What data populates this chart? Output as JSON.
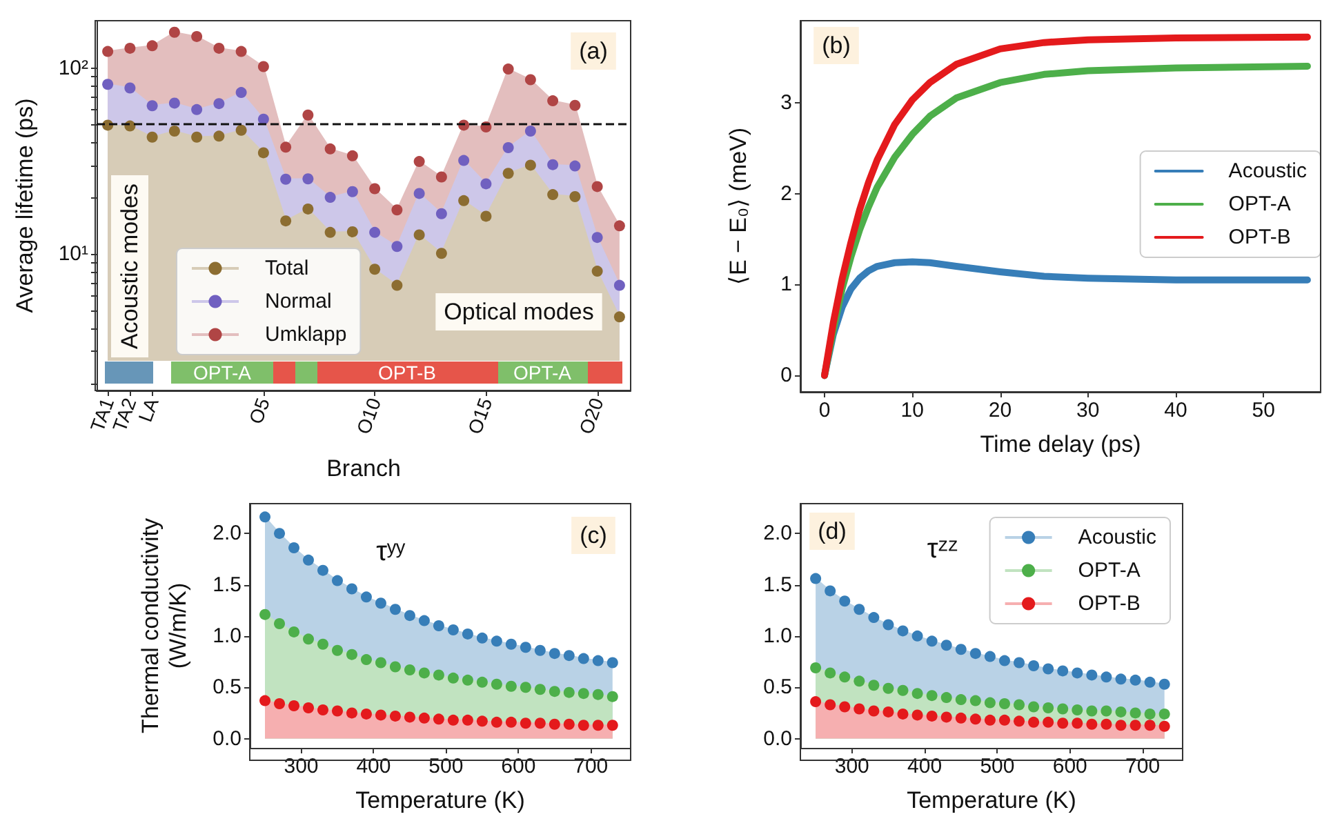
{
  "chart_data": [
    {
      "type": "area",
      "xlabel": "Branch",
      "ylabel": "Average lifetime (ps)",
      "log": "y",
      "marker": "circle",
      "grid": false,
      "legend": "bottom left",
      "categories": [
        "TA1",
        "TA2",
        "LA",
        null,
        null,
        null,
        null,
        "O5",
        null,
        null,
        null,
        null,
        "O10",
        null,
        null,
        null,
        null,
        "O15",
        null,
        null,
        null,
        null,
        "O20",
        null
      ],
      "ylim": [
        1.85,
        180
      ],
      "yticks": [
        {
          "value": 2,
          "label": null
        },
        {
          "value": 3,
          "label": null
        },
        {
          "value": 4,
          "label": null
        },
        {
          "value": 5,
          "label": null
        },
        {
          "value": 6,
          "label": null
        },
        {
          "value": 7,
          "label": null
        },
        {
          "value": 8,
          "label": null
        },
        {
          "value": 9,
          "label": null
        },
        {
          "value": 10,
          "label": "10¹"
        },
        {
          "value": 20,
          "label": null
        },
        {
          "value": 30,
          "label": null
        },
        {
          "value": 40,
          "label": null
        },
        {
          "value": 50,
          "label": null
        },
        {
          "value": 60,
          "label": null
        },
        {
          "value": 70,
          "label": null
        },
        {
          "value": 80,
          "label": null
        },
        {
          "value": 90,
          "label": null
        },
        {
          "value": 100,
          "label": "10²"
        }
      ],
      "series": [
        {
          "name": "Total",
          "color": "#8c6d31",
          "values": [
            49.4,
            48.9,
            42.6,
            45.9,
            42.6,
            43.1,
            46.4,
            35.1,
            15.1,
            17.5,
            13.1,
            13.2,
            8.3,
            6.8,
            12.7,
            10.1,
            19.4,
            16.0,
            27.2,
            30.1,
            20.9,
            20.4,
            8.1,
            4.6
          ]
        },
        {
          "name": "Normal",
          "color": "#7060c0",
          "values": [
            81.9,
            78.3,
            62.8,
            64.9,
            59.9,
            64.5,
            74.0,
            53.2,
            25.3,
            25.4,
            20.2,
            21.7,
            13.1,
            11.0,
            21.2,
            16.5,
            31.9,
            23.9,
            37.4,
            45.9,
            30.3,
            29.8,
            12.3,
            6.8
          ]
        },
        {
          "name": "Umklapp",
          "color": "#b04545",
          "values": [
            123,
            128,
            132,
            156,
            148,
            128,
            123,
            102,
            37.6,
            56.0,
            36.8,
            33.8,
            22.5,
            17.3,
            31.5,
            26.0,
            49.4,
            48.3,
            98.9,
            86.7,
            66.8,
            63.1,
            23.1,
            14.2
          ]
        }
      ],
      "ref_lines": [
        {
          "axis": "y",
          "value": 50,
          "label": null,
          "color": "#111111",
          "line_style": "dashed"
        }
      ],
      "annotations": [
        "(a)",
        "Acoustic modes",
        "Optical modes",
        "OPT-A",
        "OPT-B",
        "OPT-A"
      ]
    },
    {
      "type": "line",
      "xlabel": "Time delay (ps)",
      "ylabel": "⟨E − E₀⟩ (meV)",
      "marker": "none",
      "line_style": "solid",
      "grid": false,
      "legend": "center right",
      "x": [
        0,
        1,
        2,
        3,
        4,
        5,
        6,
        8,
        10,
        12,
        15,
        20,
        25,
        30,
        40,
        55
      ],
      "xlim": [
        -2.75,
        56.5
      ],
      "xticks": [
        0,
        10,
        20,
        30,
        40,
        50
      ],
      "ylim": [
        -0.18,
        3.9
      ],
      "yticks": [
        0,
        1,
        2,
        3
      ],
      "series": [
        {
          "name": "Acoustic",
          "color": "#377eb8",
          "values": [
            0,
            0.45,
            0.75,
            0.95,
            1.07,
            1.15,
            1.2,
            1.24,
            1.25,
            1.24,
            1.2,
            1.14,
            1.09,
            1.07,
            1.05,
            1.05
          ]
        },
        {
          "name": "OPT-A",
          "color": "#4daf4a",
          "values": [
            0,
            0.5,
            0.95,
            1.3,
            1.6,
            1.85,
            2.07,
            2.4,
            2.65,
            2.85,
            3.05,
            3.22,
            3.31,
            3.35,
            3.38,
            3.4
          ]
        },
        {
          "name": "OPT-B",
          "color": "#e41a1c",
          "values": [
            0,
            0.58,
            1.06,
            1.46,
            1.82,
            2.12,
            2.37,
            2.76,
            3.03,
            3.22,
            3.42,
            3.59,
            3.66,
            3.69,
            3.71,
            3.72
          ]
        }
      ],
      "annotations": [
        "(b)"
      ]
    },
    {
      "type": "area",
      "xlabel": "Temperature (K)",
      "ylabel": "Thermal conductivity\n(W/m/K)",
      "marker": "circle",
      "grid": false,
      "legend": false,
      "x": [
        250,
        270,
        290,
        310,
        330,
        350,
        370,
        390,
        410,
        430,
        450,
        470,
        490,
        510,
        530,
        550,
        570,
        590,
        610,
        630,
        650,
        670,
        690,
        710,
        730
      ],
      "xlim": [
        229,
        755
      ],
      "xticks": [
        300,
        400,
        500,
        600,
        700
      ],
      "ylim": [
        -0.09,
        2.29
      ],
      "yticks": [
        {
          "value": 0,
          "label": "0.0"
        },
        {
          "value": 0.5,
          "label": "0.5"
        },
        {
          "value": 1,
          "label": "1.0"
        },
        {
          "value": 1.5,
          "label": "1.5"
        },
        {
          "value": 2,
          "label": "2.0"
        }
      ],
      "series": [
        {
          "color": "#377eb8",
          "values": [
            2.16,
            2.0,
            1.86,
            1.74,
            1.64,
            1.54,
            1.46,
            1.38,
            1.32,
            1.26,
            1.2,
            1.15,
            1.1,
            1.06,
            1.02,
            0.98,
            0.95,
            0.92,
            0.89,
            0.86,
            0.83,
            0.81,
            0.78,
            0.76,
            0.74
          ]
        },
        {
          "color": "#4daf4a",
          "values": [
            1.21,
            1.12,
            1.04,
            0.97,
            0.92,
            0.86,
            0.82,
            0.77,
            0.74,
            0.7,
            0.67,
            0.64,
            0.62,
            0.59,
            0.57,
            0.55,
            0.53,
            0.51,
            0.5,
            0.48,
            0.46,
            0.45,
            0.44,
            0.43,
            0.41
          ]
        },
        {
          "color": "#e41a1c",
          "values": [
            0.37,
            0.34,
            0.32,
            0.3,
            0.28,
            0.27,
            0.25,
            0.24,
            0.23,
            0.22,
            0.21,
            0.2,
            0.19,
            0.18,
            0.18,
            0.17,
            0.16,
            0.16,
            0.15,
            0.15,
            0.14,
            0.14,
            0.13,
            0.13,
            0.13
          ]
        }
      ],
      "annotations": [
        "τʸʸ",
        "(c)"
      ]
    },
    {
      "type": "area",
      "xlabel": "Temperature (K)",
      "marker": "circle",
      "grid": false,
      "legend": "top right",
      "x": [
        250,
        270,
        290,
        310,
        330,
        350,
        370,
        390,
        410,
        430,
        450,
        470,
        490,
        510,
        530,
        550,
        570,
        590,
        610,
        630,
        650,
        670,
        690,
        710,
        730
      ],
      "xlim": [
        229,
        755
      ],
      "xticks": [
        300,
        400,
        500,
        600,
        700
      ],
      "ylim": [
        -0.09,
        2.29
      ],
      "yticks": [
        {
          "value": 0,
          "label": "0.0"
        },
        {
          "value": 0.5,
          "label": "0.5"
        },
        {
          "value": 1,
          "label": "1.0"
        },
        {
          "value": 1.5,
          "label": "1.5"
        },
        {
          "value": 2,
          "label": "2.0"
        }
      ],
      "series": [
        {
          "name": "Acoustic",
          "color": "#377eb8",
          "values": [
            1.56,
            1.44,
            1.34,
            1.26,
            1.18,
            1.11,
            1.05,
            1.0,
            0.95,
            0.91,
            0.87,
            0.83,
            0.8,
            0.76,
            0.74,
            0.71,
            0.68,
            0.66,
            0.64,
            0.62,
            0.6,
            0.58,
            0.57,
            0.55,
            0.53
          ]
        },
        {
          "name": "OPT-A",
          "color": "#4daf4a",
          "values": [
            0.69,
            0.64,
            0.6,
            0.56,
            0.52,
            0.49,
            0.47,
            0.44,
            0.42,
            0.4,
            0.38,
            0.37,
            0.35,
            0.34,
            0.33,
            0.31,
            0.3,
            0.29,
            0.28,
            0.27,
            0.27,
            0.26,
            0.25,
            0.24,
            0.24
          ]
        },
        {
          "name": "OPT-B",
          "color": "#e41a1c",
          "values": [
            0.36,
            0.33,
            0.31,
            0.29,
            0.27,
            0.26,
            0.24,
            0.23,
            0.22,
            0.21,
            0.2,
            0.19,
            0.18,
            0.18,
            0.17,
            0.16,
            0.16,
            0.15,
            0.15,
            0.14,
            0.14,
            0.13,
            0.13,
            0.13,
            0.12
          ]
        }
      ],
      "annotations": [
        "τᶻᶻ",
        "(d)"
      ]
    }
  ]
}
